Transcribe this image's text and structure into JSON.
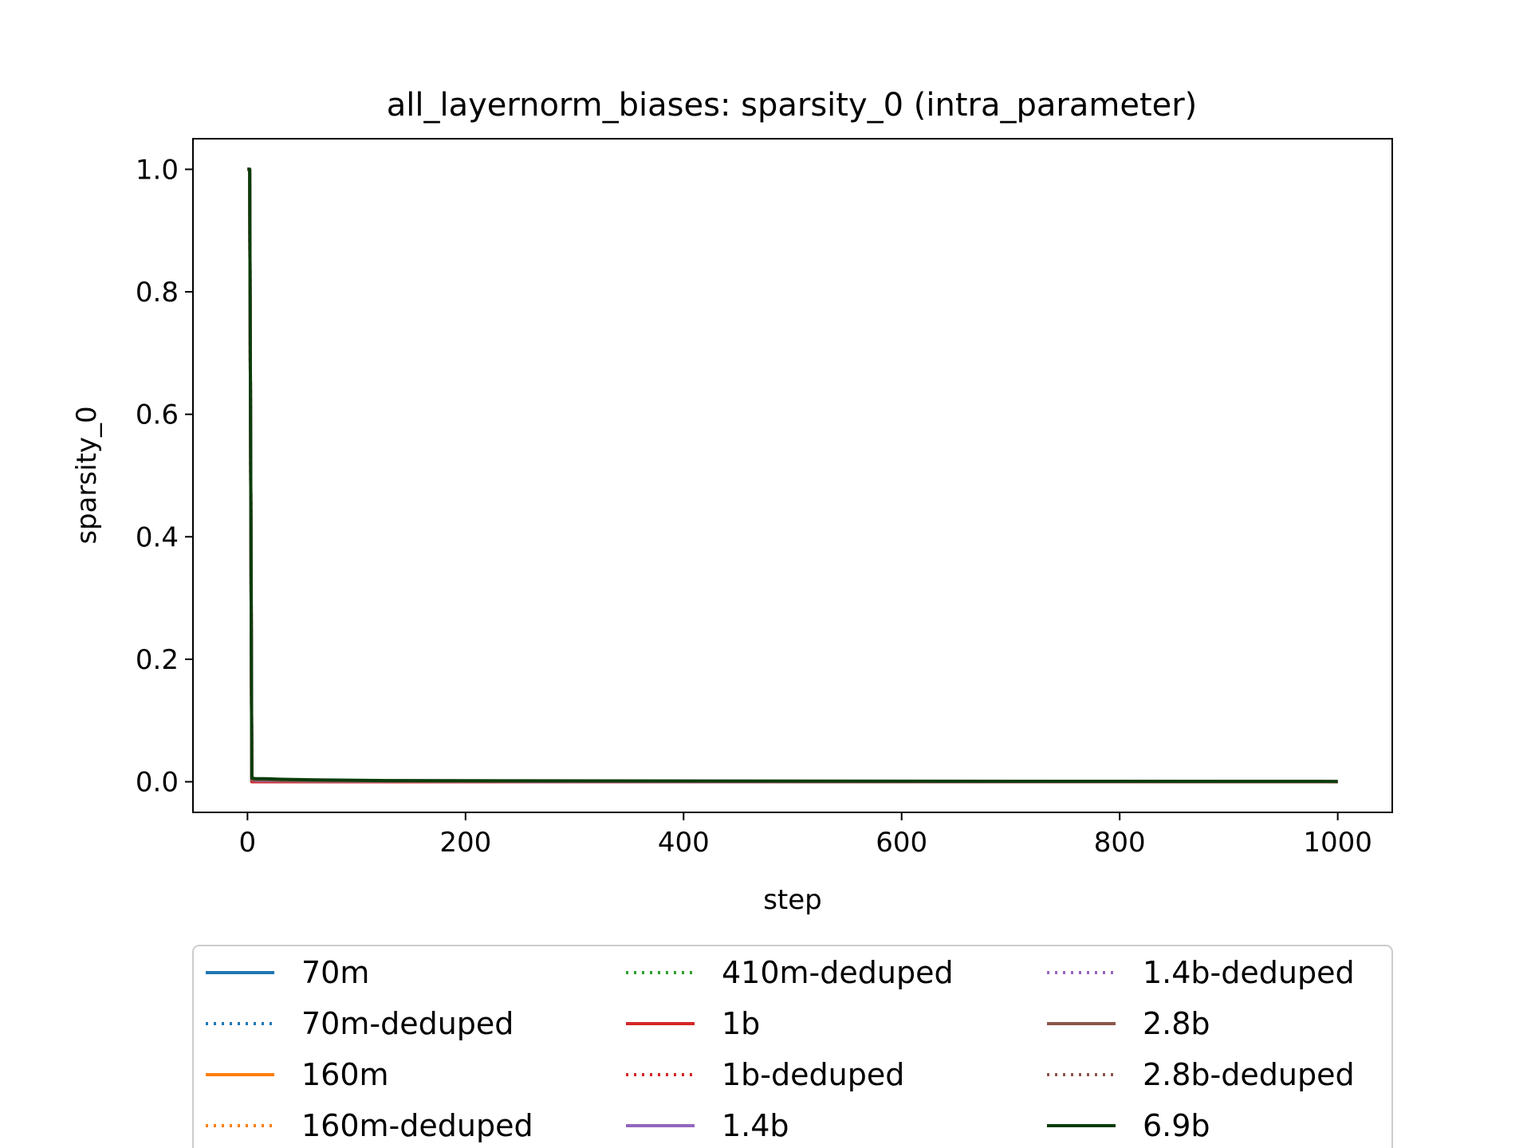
{
  "chart_data": {
    "type": "line",
    "title": "all_layernorm_biases: sparsity_0 (intra_parameter)",
    "xlabel": "step",
    "ylabel": "sparsity_0",
    "xlim": [
      -50,
      1050
    ],
    "ylim": [
      -0.05,
      1.05
    ],
    "xticks": [
      0,
      200,
      400,
      600,
      800,
      1000
    ],
    "xtick_labels": [
      "0",
      "200",
      "400",
      "600",
      "800",
      "1000"
    ],
    "yticks": [
      0.0,
      0.2,
      0.4,
      0.6,
      0.8,
      1.0
    ],
    "ytick_labels": [
      "0.0",
      "0.2",
      "0.4",
      "0.6",
      "0.8",
      "1.0"
    ],
    "grid": false,
    "legend_position": "below plot, 3 columns",
    "series": [
      {
        "name": "70m",
        "color": "#1f77b4",
        "dash": "solid",
        "x": [
          0,
          2,
          4,
          8,
          16,
          32,
          64,
          128,
          256,
          512,
          1000
        ],
        "y": [
          1.0,
          1.0,
          0.0015,
          0.001,
          0.0008,
          0.0006,
          0.0004,
          0.0003,
          0.0002,
          0.0001,
          0.0001
        ]
      },
      {
        "name": "70m-deduped",
        "color": "#1f77b4",
        "dash": "dotted",
        "x": [
          0,
          2,
          4,
          8,
          16,
          32,
          64,
          128,
          256,
          512,
          1000
        ],
        "y": [
          1.0,
          1.0,
          0.0015,
          0.001,
          0.0008,
          0.0006,
          0.0004,
          0.0003,
          0.0002,
          0.0001,
          0.0001
        ]
      },
      {
        "name": "160m",
        "color": "#ff7f0e",
        "dash": "solid",
        "x": [
          0,
          2,
          4,
          8,
          16,
          32,
          64,
          128,
          256,
          512,
          1000
        ],
        "y": [
          1.0,
          1.0,
          0.001,
          0.0008,
          0.0006,
          0.0005,
          0.0004,
          0.0003,
          0.0002,
          0.0001,
          0.0001
        ]
      },
      {
        "name": "160m-deduped",
        "color": "#ff7f0e",
        "dash": "dotted",
        "x": [
          0,
          2,
          4,
          8,
          16,
          32,
          64,
          128,
          256,
          512,
          1000
        ],
        "y": [
          1.0,
          1.0,
          0.001,
          0.0008,
          0.0006,
          0.0005,
          0.0004,
          0.0003,
          0.0002,
          0.0001,
          0.0001
        ]
      },
      {
        "name": "410m-deduped",
        "color": "#2ca02c",
        "dash": "dotted",
        "x": [
          0,
          2,
          4,
          8,
          16,
          32,
          64,
          128,
          256,
          512,
          1000
        ],
        "y": [
          1.0,
          1.0,
          0.004,
          0.003,
          0.003,
          0.002,
          0.0015,
          0.001,
          0.0008,
          0.0005,
          0.0003
        ]
      },
      {
        "name": "1b",
        "color": "#d62728",
        "dash": "solid",
        "x": [
          0,
          2,
          4,
          8,
          16,
          32,
          64,
          128,
          256,
          512,
          1000
        ],
        "y": [
          1.0,
          1.0,
          0.0,
          0.0,
          0.0,
          0.0,
          0.0,
          0.0,
          0.0,
          0.0,
          0.0
        ]
      },
      {
        "name": "1b-deduped",
        "color": "#d62728",
        "dash": "dotted",
        "x": [
          0,
          2,
          4,
          8,
          16,
          32,
          64,
          128,
          256,
          512,
          1000
        ],
        "y": [
          1.0,
          1.0,
          0.0005,
          0.0004,
          0.0003,
          0.0003,
          0.0002,
          0.0002,
          0.0001,
          0.0001,
          0.0001
        ]
      },
      {
        "name": "1.4b",
        "color": "#9467bd",
        "dash": "solid",
        "x": [
          0,
          2,
          4,
          8,
          16,
          32,
          64,
          128,
          256,
          512,
          1000
        ],
        "y": [
          1.0,
          1.0,
          0.003,
          0.002,
          0.002,
          0.0015,
          0.001,
          0.0008,
          0.0005,
          0.0003,
          0.0002
        ]
      },
      {
        "name": "1.4b-deduped",
        "color": "#9467bd",
        "dash": "dotted",
        "x": [
          0,
          2,
          4,
          8,
          16,
          32,
          64,
          128,
          256,
          512,
          1000
        ],
        "y": [
          1.0,
          1.0,
          0.003,
          0.002,
          0.002,
          0.0015,
          0.001,
          0.0008,
          0.0005,
          0.0003,
          0.0002
        ]
      },
      {
        "name": "2.8b",
        "color": "#8c564b",
        "dash": "solid",
        "x": [
          0,
          2,
          4,
          8,
          16,
          32,
          64,
          128,
          256,
          512,
          1000
        ],
        "y": [
          1.0,
          1.0,
          0.003,
          0.003,
          0.003,
          0.002,
          0.0015,
          0.001,
          0.0008,
          0.0005,
          0.0003
        ]
      },
      {
        "name": "2.8b-deduped",
        "color": "#8c564b",
        "dash": "dotted",
        "x": [
          0,
          2,
          4,
          8,
          16,
          32,
          64,
          128,
          256,
          512,
          1000
        ],
        "y": [
          1.0,
          1.0,
          0.003,
          0.003,
          0.003,
          0.002,
          0.0015,
          0.001,
          0.0008,
          0.0005,
          0.0003
        ]
      },
      {
        "name": "6.9b",
        "color": "#0b3d0b",
        "dash": "solid",
        "x": [
          0,
          2,
          4,
          8,
          16,
          32,
          64,
          128,
          256,
          512,
          1000
        ],
        "y": [
          1.0,
          1.0,
          0.006,
          0.005,
          0.005,
          0.004,
          0.003,
          0.002,
          0.0015,
          0.001,
          0.0005
        ]
      }
    ]
  }
}
